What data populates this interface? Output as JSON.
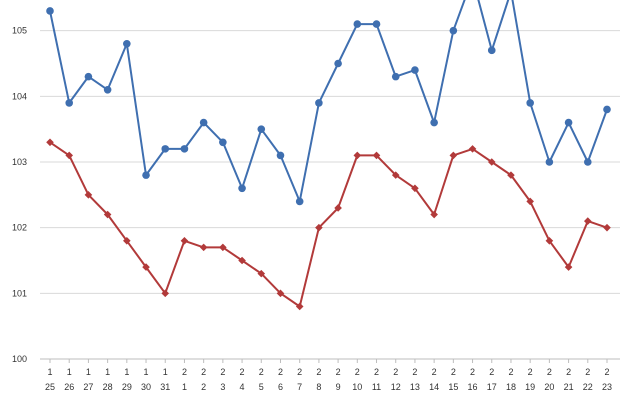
{
  "chart_data": {
    "type": "line",
    "title": "",
    "xlabel": "",
    "ylabel": "",
    "ylim": [
      100,
      106
    ],
    "y_ticks": [
      100,
      101,
      102,
      103,
      104,
      105
    ],
    "grid": true,
    "legend": "none",
    "categories": [
      {
        "top": "1",
        "bottom": "25"
      },
      {
        "top": "1",
        "bottom": "26"
      },
      {
        "top": "1",
        "bottom": "27"
      },
      {
        "top": "1",
        "bottom": "28"
      },
      {
        "top": "1",
        "bottom": "29"
      },
      {
        "top": "1",
        "bottom": "30"
      },
      {
        "top": "1",
        "bottom": "31"
      },
      {
        "top": "2",
        "bottom": "1"
      },
      {
        "top": "2",
        "bottom": "2"
      },
      {
        "top": "2",
        "bottom": "3"
      },
      {
        "top": "2",
        "bottom": "4"
      },
      {
        "top": "2",
        "bottom": "5"
      },
      {
        "top": "2",
        "bottom": "6"
      },
      {
        "top": "2",
        "bottom": "7"
      },
      {
        "top": "2",
        "bottom": "8"
      },
      {
        "top": "2",
        "bottom": "9"
      },
      {
        "top": "2",
        "bottom": "10"
      },
      {
        "top": "2",
        "bottom": "11"
      },
      {
        "top": "2",
        "bottom": "12"
      },
      {
        "top": "2",
        "bottom": "13"
      },
      {
        "top": "2",
        "bottom": "14"
      },
      {
        "top": "2",
        "bottom": "15"
      },
      {
        "top": "2",
        "bottom": "16"
      },
      {
        "top": "2",
        "bottom": "17"
      },
      {
        "top": "2",
        "bottom": "18"
      },
      {
        "top": "2",
        "bottom": "19"
      },
      {
        "top": "2",
        "bottom": "20"
      },
      {
        "top": "2",
        "bottom": "21"
      },
      {
        "top": "2",
        "bottom": "22"
      },
      {
        "top": "2",
        "bottom": "23"
      }
    ],
    "series": [
      {
        "color": "#3f6fb0",
        "marker": "circle",
        "values": [
          105.3,
          103.9,
          104.3,
          104.1,
          104.8,
          102.8,
          103.2,
          103.2,
          103.6,
          103.3,
          102.6,
          103.5,
          103.1,
          102.4,
          103.9,
          104.5,
          105.1,
          105.1,
          104.3,
          104.4,
          103.6,
          105.0,
          105.8,
          104.7,
          105.6,
          103.9,
          103.0,
          103.6,
          103.0,
          103.8
        ]
      },
      {
        "color": "#b23a3a",
        "marker": "diamond",
        "values": [
          103.3,
          103.1,
          102.5,
          102.2,
          101.8,
          101.4,
          101.0,
          101.8,
          101.7,
          101.7,
          101.5,
          101.3,
          101.0,
          100.8,
          102.0,
          102.3,
          103.1,
          103.1,
          102.8,
          102.6,
          102.2,
          103.1,
          103.2,
          103.0,
          102.8,
          102.4,
          101.8,
          101.4,
          102.1,
          102.0
        ]
      }
    ]
  }
}
